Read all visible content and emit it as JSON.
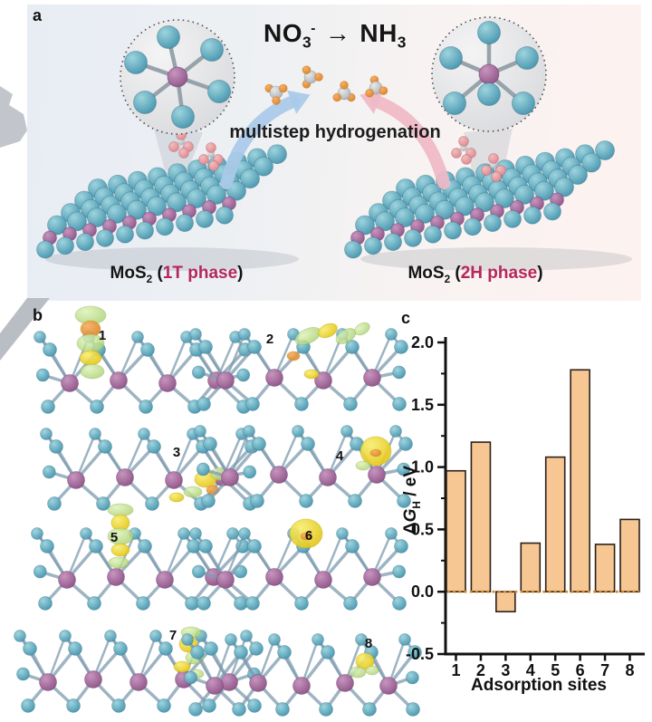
{
  "figure": {
    "panel_a": {
      "label": "a",
      "title": {
        "reactant": "NO",
        "reactant_sub": "3",
        "reactant_sup": "-",
        "arrow": "→",
        "product": "NH",
        "product_sub": "3"
      },
      "process_text": "multistep hydrogenation",
      "left_slab": {
        "material": "MoS",
        "material_sub": "2",
        "paren_open": " (",
        "phase": "1T phase",
        "paren_close": ")"
      },
      "right_slab": {
        "material": "MoS",
        "material_sub": "2",
        "paren_open": " (",
        "phase": "2H phase",
        "paren_close": ")"
      },
      "left_inset": "octahedral MoS6 unit of 1T phase",
      "right_inset": "trigonal prismatic MoS6 unit of 2H phase",
      "colors": {
        "sulfur": "#57a7be",
        "molybdenum": "#a868a0",
        "nitrate_pink": "#e79a9e",
        "ammonia_orange": "#e8943c",
        "nitrogen_gray": "#c3c6c8",
        "arrow_blue": "#a9cae9",
        "arrow_pink": "#efb9c6",
        "phase_text": "#b5275d",
        "page_fold": "#c2c6cc",
        "bg_left": "#e8edf4",
        "bg_right": "#fdf2f0"
      }
    },
    "panel_b": {
      "label": "b",
      "structures": [
        {
          "number": "1",
          "isosurface": "columnar green-yellow blob above left adsorption site"
        },
        {
          "number": "2",
          "isosurface": "tilted green-yellow lobes over upper right S sites"
        },
        {
          "number": "3",
          "isosurface": "lobes at lower right edge site"
        },
        {
          "number": "4",
          "isosurface": "spherical yellow blob at right edge"
        },
        {
          "number": "5",
          "isosurface": "columnar green-yellow blob above center-left site"
        },
        {
          "number": "6",
          "isosurface": "yellow dome on top center S site"
        },
        {
          "number": "7",
          "isosurface": "stacked lobes at right edge site"
        },
        {
          "number": "8",
          "isosurface": "small yellow-green blob at right edge"
        }
      ],
      "isosurface_colors": {
        "green": "#cde9a0",
        "yellow": "#f2e13c",
        "orange": "#f0a030"
      }
    },
    "panel_c": {
      "label": "c",
      "chart_data": {
        "type": "bar",
        "categories": [
          "1",
          "2",
          "3",
          "4",
          "5",
          "6",
          "7",
          "8"
        ],
        "values": [
          0.97,
          1.2,
          -0.16,
          0.39,
          1.08,
          1.78,
          0.38,
          0.58
        ],
        "title": "",
        "xlabel": "Adsorption sites",
        "ylabel": "ΔG_H / eV",
        "ylabel_parts": {
          "delta": "Δ",
          "symbol": "G",
          "subscript": "H",
          "units": " / eV"
        },
        "ylim": [
          -0.5,
          2.0
        ],
        "yticks": [
          2.0,
          1.5,
          1.0,
          0.5,
          0.0,
          -0.5
        ],
        "ytick_labels": [
          "2.0",
          "1.5",
          "1.0",
          "0.5",
          "0.0",
          "-0.5"
        ],
        "minor_tick_step": 0.25,
        "bar_fill": "#f6c693",
        "bar_edge": "#2b2119",
        "zero_line": {
          "y": 0,
          "style": "dotted",
          "color": "#d8882a"
        },
        "grid": false,
        "legend": null
      }
    }
  }
}
